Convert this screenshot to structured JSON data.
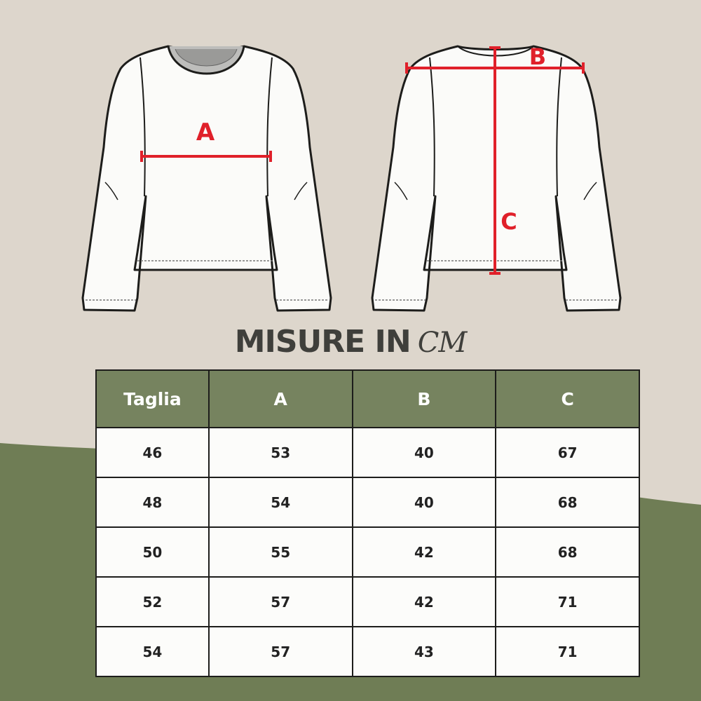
{
  "diagram": {
    "front_label": "A",
    "back_width_label": "B",
    "back_length_label": "C",
    "measure_color": "#e0202a"
  },
  "colors": {
    "background": "#ddd6cc",
    "green": "#6f7d55",
    "header": "#76835f"
  },
  "title": {
    "text": "MISURE IN",
    "unit": "CM"
  },
  "table": {
    "headers": [
      "Taglia",
      "A",
      "B",
      "C"
    ],
    "rows": [
      [
        "46",
        "53",
        "40",
        "67"
      ],
      [
        "48",
        "54",
        "40",
        "68"
      ],
      [
        "50",
        "55",
        "42",
        "68"
      ],
      [
        "52",
        "57",
        "42",
        "71"
      ],
      [
        "54",
        "57",
        "43",
        "71"
      ]
    ]
  }
}
